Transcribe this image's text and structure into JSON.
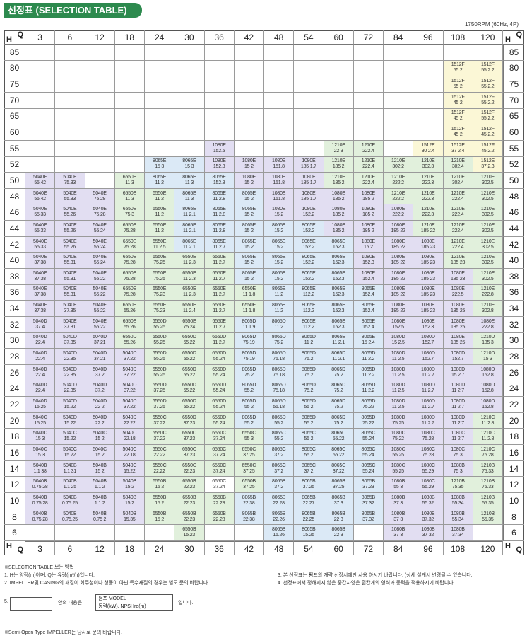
{
  "header": {
    "title": "선정표 (SELECTION TABLE)",
    "rpm_note": "1750RPM (60Hz, 4P)"
  },
  "axis": {
    "h_label": "H",
    "q_label": "Q",
    "flows": [
      "3",
      "6",
      "12",
      "18",
      "24",
      "30",
      "36",
      "42",
      "48",
      "54",
      "60",
      "72",
      "84",
      "96",
      "108",
      "120"
    ],
    "heads": [
      "85",
      "80",
      "75",
      "70",
      "65",
      "60",
      "55",
      "52",
      "50",
      "48",
      "46",
      "44",
      "42",
      "40",
      "38",
      "36",
      "34",
      "32",
      "30",
      "28",
      "26",
      "24",
      "22",
      "20",
      "18",
      "16",
      "14",
      "12",
      "10",
      "8",
      "6"
    ]
  },
  "colors": {
    "title_bg": "#2d8a4e",
    "grid_line": "#9a9a9a",
    "zone_lavender": "#e2def2",
    "zone_green": "#e1f0dc",
    "zone_blue": "#dbe9f6",
    "zone_yellow": "#fbf7d6",
    "zone_white": "#ffffff"
  },
  "table": {
    "rows": [
      {
        "h": "85",
        "cells": [
          "",
          "",
          "",
          "",
          "",
          "",
          "",
          "",
          "",
          "",
          "",
          "",
          "",
          "",
          "",
          ""
        ]
      },
      {
        "h": "80",
        "cells": [
          "",
          "",
          "",
          "",
          "",
          "",
          "",
          "",
          "",
          "",
          "",
          "",
          "",
          "",
          "1512F|55 2",
          "1512F|55 2.2"
        ]
      },
      {
        "h": "75",
        "cells": [
          "",
          "",
          "",
          "",
          "",
          "",
          "",
          "",
          "",
          "",
          "",
          "",
          "",
          "",
          "1512F|55 2",
          "1512F|55 2.2"
        ]
      },
      {
        "h": "70",
        "cells": [
          "",
          "",
          "",
          "",
          "",
          "",
          "",
          "",
          "",
          "",
          "",
          "",
          "",
          "",
          "1512F|45 2",
          "1512F|55 2.2"
        ]
      },
      {
        "h": "65",
        "cells": [
          "",
          "",
          "",
          "",
          "",
          "",
          "",
          "",
          "",
          "",
          "",
          "",
          "",
          "",
          "1512F|45 2",
          "1512F|55 2.2"
        ]
      },
      {
        "h": "60",
        "cells": [
          "",
          "",
          "",
          "",
          "",
          "",
          "",
          "",
          "",
          "",
          "",
          "",
          "",
          "",
          "1512F|45 2",
          "1512F|45 2.2"
        ]
      },
      {
        "h": "55",
        "cells": [
          "",
          "",
          "",
          "",
          "",
          "",
          "1080E|152.5",
          "",
          "",
          "",
          "1210E|22 3",
          "1210E|222.4",
          "",
          "1512E|30 2.4",
          "1512E|37 2.4",
          "1512F|45 2.2"
        ]
      },
      {
        "h": "52",
        "cells": [
          "",
          "",
          "",
          "",
          "8065E|15 3",
          "8065E|15 3",
          "1080E|152.8",
          "1080E|15 2",
          "1080E|151.8",
          "1080E|185 1.7",
          "1210E|185 2",
          "1210E|222.4",
          "1210E|302.2",
          "1210E|302.3",
          "1210E|302.4",
          "1512E|37 2.3"
        ]
      },
      {
        "h": "50",
        "cells": [
          "5040E|55.42",
          "5040E|75.33",
          "",
          "6550E|11 3",
          "8065E|11 2",
          "8065E|11 3",
          "8065E|152.8",
          "1080E|15 2",
          "1080E|151.8",
          "1080E|185 1.7",
          "1210E|185 2",
          "1210E|222.4",
          "1210E|222.2",
          "1210E|222.3",
          "1210E|302.4",
          "1210E|302.5"
        ]
      },
      {
        "h": "48",
        "cells": [
          "5040E|55.42",
          "5040E|55.33",
          "5040E|75.28",
          "6550E|11 3",
          "6550E|11 2",
          "8065E|11 3",
          "8065E|11 2.8",
          "8065E|15 2",
          "1080E|151.8",
          "1080E|185 1.7",
          "1080E|185 2",
          "1080E|185 2",
          "1210E|222.2",
          "1210E|222.3",
          "1210E|222.4",
          "1210E|302.5"
        ]
      },
      {
        "h": "46",
        "cells": [
          "5040E|55.33",
          "5040E|55.26",
          "5040E|75.28",
          "6550E|75 3",
          "6550E|11 2",
          "8065E|11 2.1",
          "8065E|11 2.8",
          "8065E|15 2",
          "1080E|15 2",
          "1080E|152.2",
          "1080E|185 2",
          "1080E|185 2",
          "1080E|222.2",
          "1210E|222.3",
          "1210E|222.4",
          "1210E|302.5"
        ]
      },
      {
        "h": "44",
        "cells": [
          "5040E|55.33",
          "5040E|55.26",
          "5040E|55.24",
          "6550E|75.28",
          "6550E|11 2",
          "8065E|11 2.1",
          "8065E|11 2.8",
          "8065E|15 2",
          "8065E|15 2",
          "8065E|152.2",
          "1080E|185 2",
          "1080E|185 2",
          "1080E|185 22",
          "1210E|185 22",
          "1210E|222.4",
          "1210E|302.5"
        ]
      },
      {
        "h": "42",
        "cells": [
          "5040E|55.33",
          "5040E|55.26",
          "5040E|55.24",
          "6550E|75.28",
          "6550E|11 2.5",
          "8065E|11 2.1",
          "8065E|11 2.7",
          "8065E|15 2",
          "8065E|15 2",
          "8065E|152.2",
          "8065E|152.3",
          "1080E|15 2",
          "1080E|185 22",
          "1080E|185 23",
          "1210E|222.4",
          "1210E|302.5"
        ]
      },
      {
        "h": "40",
        "cells": [
          "5040E|37.38",
          "5040E|55.31",
          "5040E|55.24",
          "6550E|75.28",
          "6550E|75.25",
          "6550E|11 2.3",
          "6550E|11 2.7",
          "8065E|15 2",
          "8065E|15 2",
          "8065E|152.2",
          "8065E|152.3",
          "1080E|152.3",
          "1080E|185 22",
          "1080E|185 23",
          "1210E|185 23",
          "1210E|302.5"
        ]
      },
      {
        "h": "38",
        "cells": [
          "5040E|37.38",
          "5040E|55.31",
          "5040E|55.22",
          "6550E|75.28",
          "6550E|75.25",
          "6550E|11 2.3",
          "6550E|11 2.7",
          "8065E|15 2",
          "8065E|15 2",
          "8065E|152.2",
          "8065E|152.3",
          "1080E|152.4",
          "1080E|185 22",
          "1080E|185 23",
          "1080E|185 23",
          "1210E|302.5"
        ]
      },
      {
        "h": "36",
        "cells": [
          "5040E|37.38",
          "5040E|55.31",
          "5040E|55.22",
          "6550E|75.28",
          "6550E|75.23",
          "6550E|11 2.3",
          "6550E|11 2.7",
          "6550E|11 1.8",
          "8065E|11 2",
          "8065E|112.2",
          "8065E|152.3",
          "8065E|152.4",
          "1080E|185 22",
          "1080E|185 23",
          "1080E|222.5",
          "1210E|222.8"
        ]
      },
      {
        "h": "34",
        "cells": [
          "5040E|37.38",
          "5040E|37.35",
          "5040E|55.22",
          "6550E|55.26",
          "6550E|75.23",
          "6550E|11 2.4",
          "6550E|11 2.7",
          "6550E|11 1.8",
          "8065E|11 2",
          "8065E|112.2",
          "8065E|152.3",
          "8065E|152.4",
          "1080E|185 22",
          "1080E|185 23",
          "1080E|185 25",
          "1210E|302.8"
        ]
      },
      {
        "h": "32",
        "cells": [
          "5040D|37.4",
          "5040E|37.31",
          "5040E|55.22",
          "6550E|55.26",
          "6550D|55.25",
          "6550E|75.24",
          "6550E|11 2.7",
          "8065D|11 1.9",
          "8065D|11 2",
          "8065E|112.2",
          "8065E|152.3",
          "8065E|152.4",
          "1080E|152.5",
          "1080E|152.3",
          "1080E|185 25",
          "1080E|222.8"
        ]
      },
      {
        "h": "30",
        "cells": [
          "5040D|22.4",
          "5040D|37.35",
          "5040D|37.21",
          "6550D|55.26",
          "6550D|55.25",
          "6550D|55.22",
          "6550D|11 2.7",
          "8065D|75.19",
          "8065D|75.2",
          "8065D|11 2",
          "8065E|11 2.1",
          "8065E|15 2.4",
          "1080D|15 2.5",
          "1080D|152.7",
          "1080E|185 25",
          "1210D|185 3"
        ]
      },
      {
        "h": "28",
        "cells": [
          "5040D|22.4",
          "5040D|22.35",
          "5040D|37.21",
          "5040D|37.22",
          "6550D|55.25",
          "6550D|55.22",
          "6550D|55.24",
          "8065D|75.19",
          "8065D|75.18",
          "8065D|75.2",
          "8065D|11 2.1",
          "8065D|11 2.2",
          "1080D|11 2.5",
          "1080D|152.7",
          "1080D|152.7",
          "1210D|15 3"
        ]
      },
      {
        "h": "26",
        "cells": [
          "5040D|22.4",
          "5040D|22.35",
          "5040D|37.2",
          "5040D|37.22",
          "6550D|55.25",
          "6550D|55.22",
          "6550D|55.24",
          "8065D|75.2",
          "8065D|75.18",
          "8065D|75.2",
          "8065D|75.2",
          "8065D|11 2.2",
          "1080D|11 2.5",
          "1080D|11 2.7",
          "1080D|15 2.7",
          "1080D|152.8"
        ]
      },
      {
        "h": "24",
        "cells": [
          "5040D|22.4",
          "5040D|22.35",
          "5040D|37.2",
          "5040D|37.22",
          "6550D|37.25",
          "6550D|55.22",
          "6550D|55.24",
          "8065D|55.2",
          "8065D|75.18",
          "8065D|75.2",
          "8065D|75.2",
          "8065D|11 2.2",
          "1080D|11 2.5",
          "1080D|11 2.7",
          "1080D|11 2.7",
          "1080D|152.8"
        ]
      },
      {
        "h": "22",
        "cells": [
          "5040D|15.25",
          "5040D|15.22",
          "5040D|22 2",
          "5040D|37.22",
          "6550D|37.25",
          "6550D|55.22",
          "6550D|55.24",
          "8065D|55 2",
          "8065D|55.18",
          "8065D|55 2",
          "8065D|75.2",
          "8065D|75.22",
          "1080D|11 2.5",
          "1080D|11 2.7",
          "1080D|11 2.7",
          "1080D|152.8"
        ]
      },
      {
        "h": "20",
        "cells": [
          "5040C|15.25",
          "5040D|15.22",
          "5040D|22 2",
          "5040D|22.22",
          "6550C|37.22",
          "6550D|37.23",
          "6550D|55.24",
          "8065D|55 2",
          "8065D|55 2",
          "8065D|55 2",
          "8065D|75 2",
          "8065D|75.22",
          "1080D|75.25",
          "1080D|11 2.7",
          "1080D|11 2.7",
          "1210C|11 2.8"
        ]
      },
      {
        "h": "18",
        "cells": [
          "5040C|15 3",
          "5040C|15.22",
          "5040C|15 2",
          "5040C|22.18",
          "6550C|37.22",
          "6550C|37.23",
          "6550C|37.24",
          "6550C|55 3",
          "8065C|55 2",
          "8065C|55 2",
          "8065C|55.22",
          "8065C|55.24",
          "1080C|75.22",
          "1080C|75.28",
          "1080C|11 2.7",
          "1210C|11 2.8"
        ]
      },
      {
        "h": "16",
        "cells": [
          "5040C|15 3",
          "5040C|15.22",
          "5040C|15 2",
          "5040C|22.18",
          "6550C|22.22",
          "6550C|37.23",
          "6550C|37.24",
          "6550C|37.25",
          "8065C|37 2",
          "8065C|55 2",
          "8065C|55.22",
          "8065C|55.24",
          "1080C|55.25",
          "1080C|75.28",
          "1080C|75 3",
          "1210C|75.28"
        ]
      },
      {
        "h": "14",
        "cells": [
          "5040B|1.1 38",
          "5040B|1.1 31",
          "5040B|15 2",
          "5040C|15.22",
          "6550C|22.22",
          "6550C|22.23",
          "6550C|37.24",
          "6550C|37.25",
          "8065C|37 2",
          "8065C|37 2",
          "8065C|37.22",
          "8065C|55.24",
          "1080C|55.25",
          "1080C|55.29",
          "1080B|75 3",
          "1210B|75.33"
        ]
      },
      {
        "h": "12",
        "cells": [
          "5040B|0.75.28",
          "5040B|1.1 25",
          "5040B|1.1 2",
          "5040B|15 2",
          "6550B|15 2",
          "6550B|22.23",
          "6650C|37.24",
          "6550B|37.25",
          "8065B|37 2",
          "8065B|37.25",
          "8065B|37.25",
          "8065B|37.23",
          "1080B|55 3",
          "1080C|55.29",
          "1210B|75.35",
          "1210B|75.33"
        ]
      },
      {
        "h": "10",
        "cells": [
          "5040B|0.75.28",
          "5040B|0.75.25",
          "5040B|1.1 2",
          "5040B|15 2",
          "6550B|15 2",
          "6550B|22.23",
          "6550B|22.28",
          "8065B|22.38",
          "8065B|22.28",
          "8065B|22.27",
          "8065B|37 3",
          "8065B|37.32",
          "1080B|37 3",
          "1080B|55.32",
          "1080B|55.34",
          "1210B|55.35"
        ]
      },
      {
        "h": "8",
        "cells": [
          "5040B|0.75.28",
          "5040B|0.75.25",
          "5040B|0.75 2",
          "5040B|15.35",
          "6550B|15 2",
          "6550B|22.23",
          "6550B|22.28",
          "8065B|22.38",
          "8065B|22.26",
          "8065B|22.25",
          "8065B|22 3",
          "8065B|37.32",
          "1080B|37 3",
          "1080B|37.32",
          "1080B|55.34",
          "1210B|55.35"
        ]
      },
      {
        "h": "6",
        "cells": [
          "",
          "",
          "",
          "",
          "",
          "6550B|15.23",
          "",
          "",
          "8065B|15.26",
          "8065B|15.25",
          "8065B|22 3",
          "",
          "1080B|37 3",
          "1080B|37 32",
          "1080B|37.34",
          ""
        ]
      }
    ]
  },
  "notes": {
    "heading": "※SELECTION TABLE 보는 방법",
    "item1": "1. H는 양정(m)이며, Q는 유량(m³/h)입니다.",
    "item2": "2. IMPELLER및 CASING의 재질이 회주철이나 청동이 아닌 특수재질의 경우는 별도 문의 바랍니다.",
    "item3": "3. 본 선정표는 펌프의 개략 선정시에만 사용 하시기 바랍니다. (상세 설계시 변경될 수 있습니다.",
    "item4": "4. 선정표에서 정해지지 않은 중간사양은 흰칸게의 형식과 동력을 적용하시기 바랍니다.",
    "item5_num": "5.",
    "item5_content_label": "안의 내용은",
    "item5_model": "펌프 MODEL",
    "item5_power": "동력(kW), NPSHre(m)",
    "item5_suffix": "입니다.",
    "semi_open": "※Semi-Open Type IMPELLER는 당사로 문의 바랍니다."
  }
}
